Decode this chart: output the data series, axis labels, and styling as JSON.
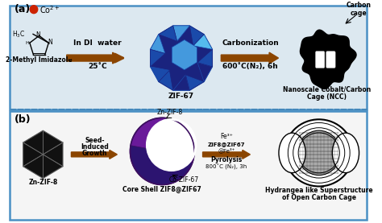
{
  "bg_color": "#ffffff",
  "panel_a_bg": "#dce8f0",
  "panel_b_bg": "#f5f5f5",
  "border_color": "#4a90c4",
  "arrow_color": "#8B4500",
  "title_a": "(a)",
  "title_b": "(b)",
  "arrow1a_label1": "In DI  water",
  "arrow1a_label2": "25˚C",
  "arrow2a_label1": "Carbonization",
  "arrow2a_label2": "600˚C(N₂), 6h",
  "label_2methyl": "2-Methyl Imidazole",
  "label_zif67": "ZIF-67",
  "label_ncc1": "Nanoscale Cobalt/Carbon",
  "label_ncc2": "Cage (NCC)",
  "label_carbon_cage": "Carbon\ncage",
  "label_co2plus": "Co²⁺",
  "label_znzif8_b": "Zn-ZIF-8",
  "label_znzif8_top": "Zn-ZIF-8",
  "label_core_shell": "Core Shell ZIF8@ZIF67",
  "label_co_zif67": "Co-ZIF-67",
  "label_zif8zif67": "ZIF8@ZIF67",
  "label_fe3": "Fe³⁺",
  "label_atfe3": "@Fe³⁺",
  "label_pyrolysis": "Pyrolysis",
  "label_800c": "800˚C (N₂), 3h",
  "label_hydrangea1": "Hydrangea like Superstructure",
  "label_hydrangea2": "of Open Carbon Cage",
  "seed_label": "Seed-\nInduced\nGrowth",
  "zif67_dark": "#1a237e",
  "zif67_mid": "#1a4aaa",
  "zif67_light": "#4499dd",
  "zif67_bright": "#55bbee",
  "purple_dark": "#3d1060",
  "purple_mid": "#6a1a9a",
  "purple_light": "#9b4fc0",
  "blue_purple": "#2c1470",
  "dashed_color": "#4488bb",
  "co_dot_color": "#cc2200"
}
